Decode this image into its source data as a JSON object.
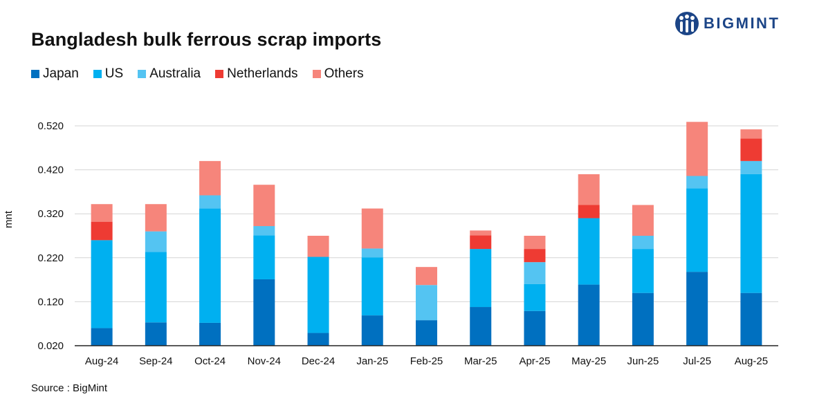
{
  "brand": "BIGMINT",
  "source": "Source : BigMint",
  "colors": {
    "Japan": "#0070c0",
    "US": "#00b0f0",
    "Australia": "#54c4f2",
    "Netherlands": "#ee3b33",
    "Others": "#f6857b"
  },
  "chart_data": {
    "type": "bar",
    "stacked": true,
    "title": "Bangladesh bulk ferrous scrap imports",
    "ylabel": "mnt",
    "xlabel": "",
    "ylim": [
      0.02,
      0.52
    ],
    "yticks": [
      "0.020",
      "0.120",
      "0.220",
      "0.320",
      "0.420",
      "0.520"
    ],
    "ytick_values": [
      0.02,
      0.12,
      0.22,
      0.32,
      0.42,
      0.52
    ],
    "grid": true,
    "legend": "top-left",
    "categories": [
      "Aug-24",
      "Sep-24",
      "Oct-24",
      "Nov-24",
      "Dec-24",
      "Jan-25",
      "Feb-25",
      "Mar-25",
      "Apr-25",
      "May-25",
      "Jun-25",
      "Jul-25",
      "Aug-25"
    ],
    "series": [
      {
        "name": "Japan",
        "values": [
          0.04,
          0.053,
          0.052,
          0.151,
          0.029,
          0.069,
          0.058,
          0.088,
          0.079,
          0.139,
          0.12,
          0.168,
          0.12
        ]
      },
      {
        "name": "US",
        "values": [
          0.2,
          0.16,
          0.26,
          0.1,
          0.173,
          0.132,
          0.0,
          0.132,
          0.061,
          0.151,
          0.1,
          0.19,
          0.27
        ]
      },
      {
        "name": "Australia",
        "values": [
          0.0,
          0.047,
          0.03,
          0.021,
          0.0,
          0.02,
          0.08,
          0.0,
          0.05,
          0.0,
          0.03,
          0.028,
          0.03
        ]
      },
      {
        "name": "Netherlands",
        "values": [
          0.042,
          0.0,
          0.0,
          0.0,
          0.0,
          0.0,
          0.0,
          0.031,
          0.03,
          0.03,
          0.0,
          0.0,
          0.051
        ]
      },
      {
        "name": "Others",
        "values": [
          0.04,
          0.062,
          0.078,
          0.094,
          0.048,
          0.091,
          0.041,
          0.011,
          0.03,
          0.07,
          0.07,
          0.123,
          0.021
        ]
      }
    ]
  }
}
